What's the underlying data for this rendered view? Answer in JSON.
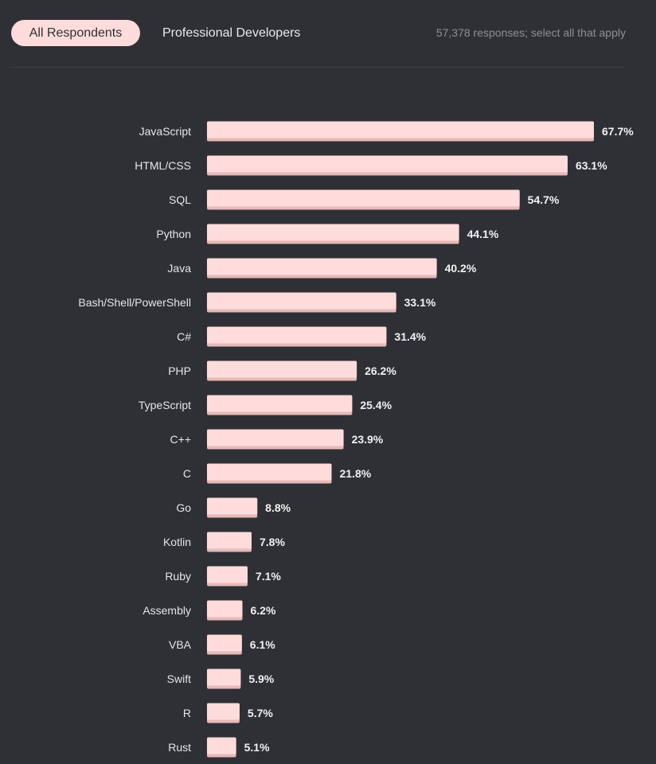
{
  "tabs": {
    "all_respondents": "All Respondents",
    "professional_developers": "Professional Developers"
  },
  "responses_note": "57,378 responses; select all that apply",
  "colors": {
    "background": "#2f3035",
    "bar": "#ffdcdc",
    "bar_shadow": "#e7b9b9",
    "active_tab": "#ffdcdc"
  },
  "chart_data": {
    "type": "bar",
    "orientation": "horizontal",
    "categories": [
      "JavaScript",
      "HTML/CSS",
      "SQL",
      "Python",
      "Java",
      "Bash/Shell/PowerShell",
      "C#",
      "PHP",
      "TypeScript",
      "C++",
      "C",
      "Go",
      "Kotlin",
      "Ruby",
      "Assembly",
      "VBA",
      "Swift",
      "R",
      "Rust"
    ],
    "values": [
      67.7,
      63.1,
      54.7,
      44.1,
      40.2,
      33.1,
      31.4,
      26.2,
      25.4,
      23.9,
      21.8,
      8.8,
      7.8,
      7.1,
      6.2,
      6.1,
      5.9,
      5.7,
      5.1
    ],
    "value_labels": [
      "67.7%",
      "63.1%",
      "54.7%",
      "44.1%",
      "40.2%",
      "33.1%",
      "31.4%",
      "26.2%",
      "25.4%",
      "23.9%",
      "21.8%",
      "8.8%",
      "7.8%",
      "7.1%",
      "6.2%",
      "6.1%",
      "5.9%",
      "5.7%",
      "5.1%"
    ],
    "unit": "%",
    "grid": false,
    "legend": "none"
  }
}
